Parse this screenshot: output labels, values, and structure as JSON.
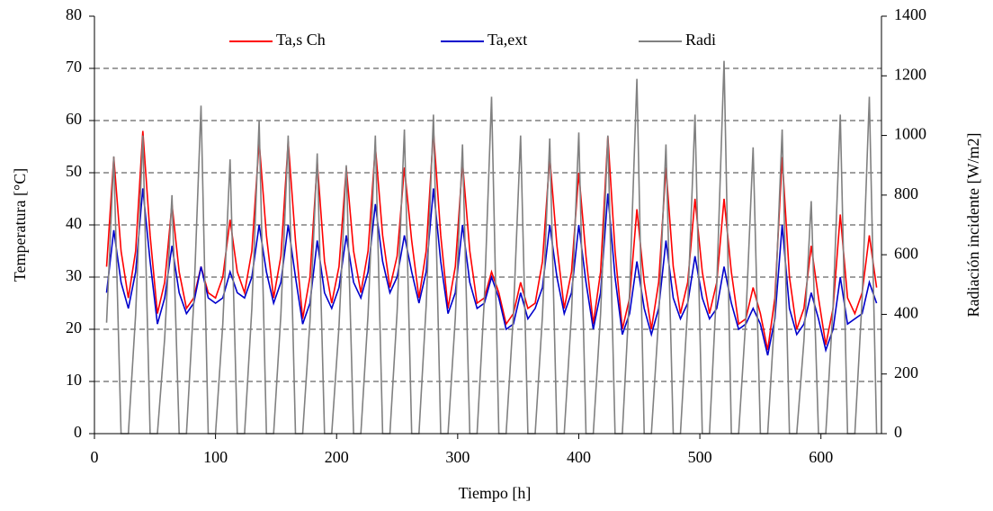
{
  "chart_data": {
    "type": "line",
    "xlabel": "Tiempo [h]",
    "ylabel": "Temperatura [°C]",
    "y2label": "Radiación incidente [W/m2]",
    "xlim": [
      0,
      650
    ],
    "xticks": [
      0,
      100,
      200,
      300,
      400,
      500,
      600
    ],
    "ylim": [
      0,
      80
    ],
    "yticks": [
      0,
      10,
      20,
      30,
      40,
      50,
      60,
      70,
      80
    ],
    "y2lim": [
      0,
      1400
    ],
    "y2ticks": [
      0,
      200,
      400,
      600,
      800,
      1000,
      1200,
      1400
    ],
    "grid": true,
    "legend": "top",
    "x": [
      10,
      16,
      22,
      28,
      34,
      40,
      46,
      52,
      58,
      64,
      70,
      76,
      82,
      88,
      94,
      100,
      106,
      112,
      118,
      124,
      130,
      136,
      142,
      148,
      154,
      160,
      166,
      172,
      178,
      184,
      190,
      196,
      202,
      208,
      214,
      220,
      226,
      232,
      238,
      244,
      250,
      256,
      262,
      268,
      274,
      280,
      286,
      292,
      298,
      304,
      310,
      316,
      322,
      328,
      334,
      340,
      346,
      352,
      358,
      364,
      370,
      376,
      382,
      388,
      394,
      400,
      406,
      412,
      418,
      424,
      430,
      436,
      442,
      448,
      454,
      460,
      466,
      472,
      478,
      484,
      490,
      496,
      502,
      508,
      514,
      520,
      526,
      532,
      538,
      544,
      550,
      556,
      562,
      568,
      574,
      580,
      586,
      592,
      598,
      604,
      610,
      616,
      622,
      628,
      634,
      640,
      646
    ],
    "series": [
      {
        "name": "Ta,s Ch",
        "color": "#ff0000",
        "values": [
          32,
          53,
          35,
          26,
          35,
          58,
          38,
          23,
          29,
          44,
          31,
          24,
          26,
          32,
          27,
          26,
          30,
          41,
          31,
          27,
          35,
          56,
          38,
          26,
          34,
          56,
          37,
          22,
          30,
          52,
          33,
          25,
          32,
          51,
          35,
          27,
          35,
          55,
          38,
          28,
          34,
          51,
          37,
          26,
          35,
          58,
          38,
          24,
          32,
          52,
          35,
          25,
          26,
          31,
          27,
          21,
          23,
          29,
          24,
          25,
          33,
          53,
          36,
          24,
          31,
          50,
          34,
          21,
          31,
          57,
          35,
          20,
          26,
          43,
          29,
          20,
          29,
          51,
          32,
          23,
          29,
          45,
          31,
          23,
          29,
          45,
          31,
          21,
          22,
          28,
          23,
          16,
          26,
          53,
          30,
          20,
          24,
          36,
          26,
          17,
          24,
          42,
          26,
          23,
          27,
          38,
          28
        ]
      },
      {
        "name": "Ta,ext",
        "color": "#0000cc",
        "values": [
          27,
          39,
          29,
          24,
          31,
          47,
          33,
          21,
          26,
          36,
          27,
          23,
          25,
          32,
          26,
          25,
          26,
          31,
          27,
          26,
          30,
          40,
          31,
          25,
          29,
          40,
          30,
          21,
          25,
          37,
          27,
          24,
          28,
          38,
          29,
          26,
          31,
          44,
          33,
          27,
          30,
          38,
          31,
          25,
          31,
          47,
          33,
          23,
          27,
          40,
          29,
          24,
          25,
          30,
          26,
          20,
          21,
          27,
          22,
          24,
          28,
          40,
          30,
          23,
          27,
          40,
          29,
          20,
          27,
          46,
          30,
          19,
          23,
          33,
          24,
          19,
          24,
          37,
          26,
          22,
          25,
          34,
          26,
          22,
          24,
          32,
          25,
          20,
          21,
          24,
          21,
          15,
          22,
          40,
          24,
          19,
          21,
          27,
          22,
          16,
          20,
          30,
          21,
          22,
          23,
          29,
          25
        ]
      },
      {
        "name": "Radi",
        "color": "#808080",
        "axis": "y2",
        "values": [
          372,
          930,
          0,
          0,
          400,
          1000,
          0,
          0,
          320,
          800,
          0,
          0,
          440,
          1100,
          0,
          0,
          368,
          920,
          0,
          0,
          420,
          1050,
          0,
          0,
          400,
          1000,
          0,
          0,
          376,
          940,
          0,
          0,
          360,
          900,
          0,
          0,
          400,
          1000,
          0,
          0,
          408,
          1020,
          0,
          0,
          428,
          1070,
          0,
          0,
          388,
          970,
          0,
          0,
          452,
          1130,
          0,
          0,
          400,
          1000,
          0,
          0,
          396,
          990,
          0,
          0,
          404,
          1010,
          0,
          0,
          400,
          1000,
          0,
          0,
          476,
          1190,
          0,
          0,
          388,
          970,
          0,
          0,
          428,
          1070,
          0,
          0,
          500,
          1250,
          0,
          0,
          384,
          960,
          0,
          0,
          408,
          1020,
          0,
          0,
          312,
          780,
          0,
          0,
          428,
          1070,
          0,
          0,
          452,
          1130,
          0
        ]
      }
    ]
  }
}
